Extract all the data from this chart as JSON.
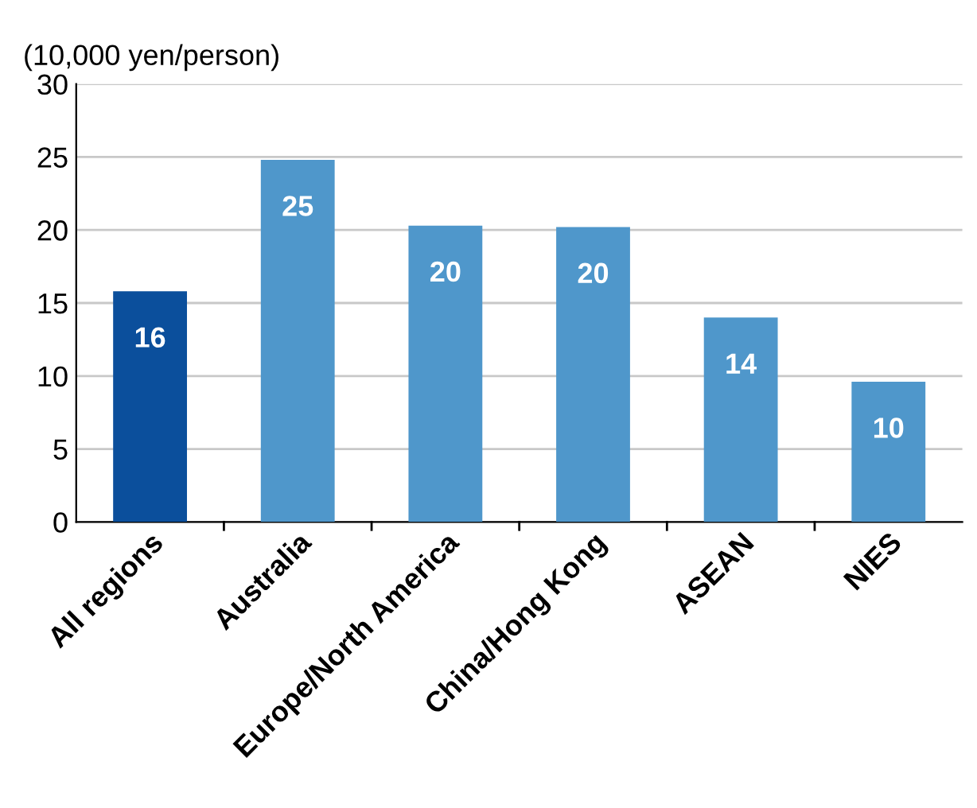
{
  "chart_data": {
    "type": "bar",
    "ylabel": "(10,000 yen/person)",
    "categories": [
      "All regions",
      "Australia",
      "Europe/North America",
      "China/Hong Kong",
      "ASEAN",
      "NIES"
    ],
    "values": [
      15.8,
      24.8,
      20.3,
      20.2,
      14.0,
      9.6
    ],
    "colors": [
      "#0b4f9c",
      "#4f97cb",
      "#4f97cb",
      "#4f97cb",
      "#4f97cb",
      "#4f97cb"
    ],
    "value_labels": [
      "16",
      "25",
      "20",
      "20",
      "14",
      "10"
    ],
    "ylim": [
      0,
      30
    ],
    "yticks": [
      0,
      5,
      10,
      15,
      20,
      25,
      30
    ],
    "grid": "y",
    "legend": false
  }
}
